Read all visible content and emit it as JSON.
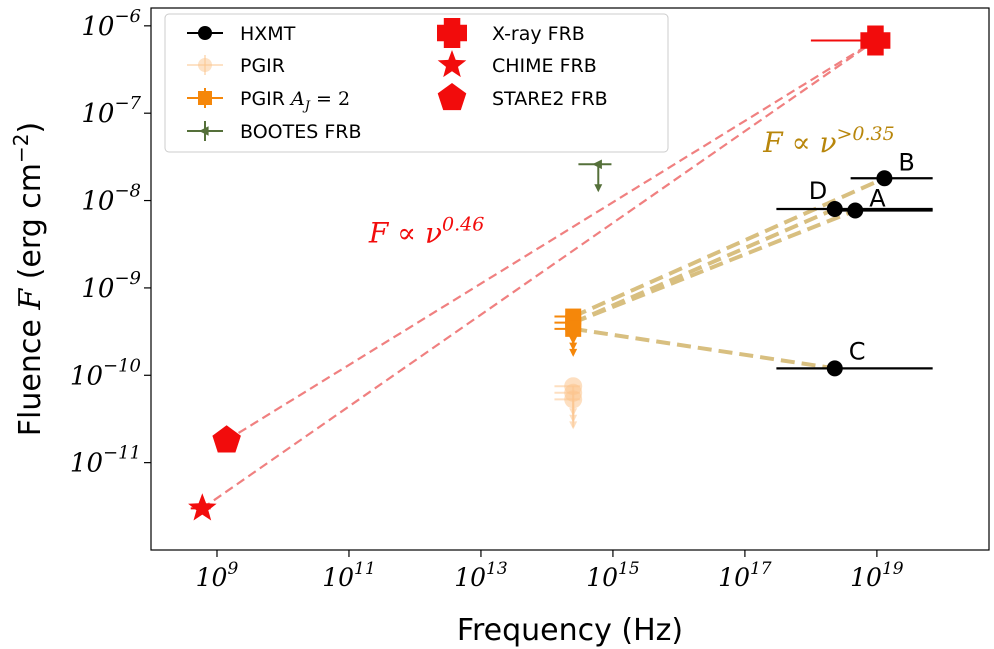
{
  "chart_data": {
    "type": "scatter",
    "xscale": "log",
    "yscale": "log",
    "xlim": [
      100000000.0,
      5e+20
    ],
    "ylim": [
      1e-12,
      1.6e-06
    ],
    "xlabel": "Frequency (Hz)",
    "ylabel_main": "Fluence ",
    "ylabel_symbol": "F",
    "ylabel_unit_pre": " (erg cm",
    "ylabel_unit_exp": "−2",
    "ylabel_unit_post": ")",
    "grid": false,
    "legend_position": "upper-left",
    "x_ticks": [
      {
        "value": 1000000000.0,
        "base": "10",
        "exp": "9"
      },
      {
        "value": 100000000000.0,
        "base": "10",
        "exp": "11"
      },
      {
        "value": 10000000000000.0,
        "base": "10",
        "exp": "13"
      },
      {
        "value": 1000000000000000.0,
        "base": "10",
        "exp": "15"
      },
      {
        "value": 1e+17,
        "base": "10",
        "exp": "17"
      },
      {
        "value": 1e+19,
        "base": "10",
        "exp": "19"
      }
    ],
    "y_ticks": [
      {
        "value": 1e-06,
        "base": "10",
        "exp": "−6"
      },
      {
        "value": 1e-07,
        "base": "10",
        "exp": "−7"
      },
      {
        "value": 1e-08,
        "base": "10",
        "exp": "−8"
      },
      {
        "value": 1e-09,
        "base": "10",
        "exp": "−9"
      },
      {
        "value": 1e-10,
        "base": "10",
        "exp": "−10"
      },
      {
        "value": 1e-11,
        "base": "10",
        "exp": "−11"
      }
    ],
    "series": [
      {
        "name": "HXMT",
        "marker": "circle",
        "color": "#000000",
        "points": [
          {
            "label": "A",
            "x": 4.7e+18,
            "y": 7.7e-09,
            "xerr": [
              2e+18,
              7e+19
            ]
          },
          {
            "label": "B",
            "x": 1.3e+19,
            "y": 1.8e-08,
            "xerr": [
              4e+18,
              7e+19
            ]
          },
          {
            "label": "C",
            "x": 2.3e+18,
            "y": 1.2e-10,
            "xerr": [
              3e+17,
              7e+19
            ]
          },
          {
            "label": "D",
            "x": 2.3e+18,
            "y": 8e-09,
            "xerr": [
              3e+17,
              7e+19
            ]
          }
        ]
      },
      {
        "name": "PGIR",
        "marker": "circle",
        "color": "#fcc58e",
        "upper_limit": true,
        "points": [
          {
            "x": 250000000000000.0,
            "y": 7.5e-11,
            "xerr": [
              130000000000000.0,
              320000000000000.0
            ]
          },
          {
            "x": 250000000000000.0,
            "y": 6.3e-11,
            "xerr": [
              130000000000000.0,
              320000000000000.0
            ]
          },
          {
            "x": 250000000000000.0,
            "y": 5.3e-11,
            "xerr": [
              130000000000000.0,
              320000000000000.0
            ]
          }
        ]
      },
      {
        "name": "PGIR A_J = 2",
        "legend_text": "PGIR ",
        "legend_math": "A",
        "legend_math_sub": "J",
        "legend_math_rest": " = 2",
        "marker": "square",
        "color": "#f5870a",
        "upper_limit": true,
        "points": [
          {
            "x": 250000000000000.0,
            "y": 4.7e-10,
            "xerr": [
              130000000000000.0,
              320000000000000.0
            ]
          },
          {
            "x": 250000000000000.0,
            "y": 4e-10,
            "xerr": [
              130000000000000.0,
              320000000000000.0
            ]
          },
          {
            "x": 250000000000000.0,
            "y": 3.4e-10,
            "xerr": [
              130000000000000.0,
              320000000000000.0
            ]
          }
        ]
      },
      {
        "name": "BOOTES FRB",
        "marker": "left-triangle",
        "color": "#55703a",
        "upper_limit": true,
        "points": [
          {
            "x": 600000000000000.0,
            "y": 2.6e-08,
            "xerr": [
              300000000000000.0,
              950000000000000.0
            ]
          }
        ]
      },
      {
        "name": "X-ray FRB",
        "marker": "plus",
        "color": "#f20c0c",
        "points": [
          {
            "x": 9.5e+18,
            "y": 6.8e-07,
            "xerr": [
              1e+18,
              1.1e+19
            ]
          }
        ]
      },
      {
        "name": "CHIME FRB",
        "marker": "star",
        "color": "#f20c0c",
        "points": [
          {
            "x": 600000000.0,
            "y": 3e-12,
            "xerr": [
              400000000.0,
              800000000.0
            ]
          }
        ]
      },
      {
        "name": "STARE2 FRB",
        "marker": "pentagon",
        "color": "#f20c0c",
        "points": [
          {
            "x": 1400000000.0,
            "y": 1.8e-11,
            "xerr": [
              1300000000.0,
              1500000000.0
            ]
          }
        ]
      }
    ],
    "fit_lines": [
      {
        "kind": "red",
        "from": [
          1400000000.0,
          1.8e-11
        ],
        "to": [
          9.5e+18,
          6.8e-07
        ]
      },
      {
        "kind": "red",
        "from": [
          600000000.0,
          3e-12
        ],
        "to": [
          9.5e+18,
          6.8e-07
        ]
      },
      {
        "kind": "gold",
        "from": [
          250000000000000.0,
          4.7e-10
        ],
        "to": [
          1.3e+19,
          1.8e-08
        ]
      },
      {
        "kind": "gold",
        "from": [
          250000000000000.0,
          4e-10
        ],
        "to": [
          4.7e+18,
          7.7e-09
        ]
      },
      {
        "kind": "gold",
        "from": [
          250000000000000.0,
          4e-10
        ],
        "to": [
          2.3e+18,
          8e-09
        ]
      },
      {
        "kind": "gold",
        "from": [
          250000000000000.0,
          3.4e-10
        ],
        "to": [
          2.3e+18,
          1.2e-10
        ]
      }
    ],
    "annotations": [
      {
        "name": "red-slope",
        "text_pre": "F ∝ ν",
        "exp": "0.46",
        "color": "#f20c0c",
        "x": 200000000000.0,
        "y": 3.3e-09
      },
      {
        "name": "gold-slope",
        "text_pre": "F ∝ ν",
        "exp": ">0.35",
        "color": "#b8860b",
        "x": 1.9e+17,
        "y": 3.6e-08
      }
    ],
    "colors": {
      "red_fit": "#f08080",
      "gold_fit": "#d8bf80",
      "axis": "#000000"
    }
  }
}
